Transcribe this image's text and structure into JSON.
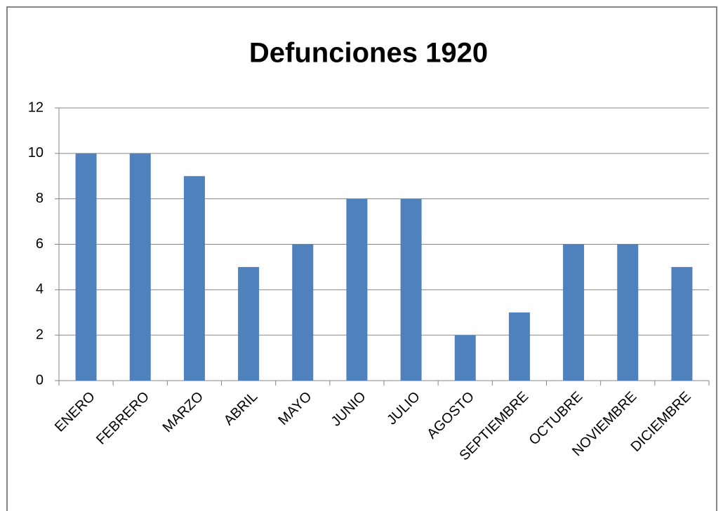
{
  "chart_data": {
    "type": "bar",
    "title": "Defunciones 1920",
    "categories": [
      "ENERO",
      "FEBRERO",
      "MARZO",
      "ABRIL",
      "MAYO",
      "JUNIO",
      "JULIO",
      "AGOSTO",
      "SEPTIEMBRE",
      "OCTUBRE",
      "NOVIEMBRE",
      "DICIEMBRE"
    ],
    "values": [
      10,
      10,
      9,
      5,
      6,
      8,
      8,
      2,
      3,
      6,
      6,
      5
    ],
    "color": "#4f81bd",
    "ylim": [
      0,
      12
    ],
    "yticks": [
      0,
      2,
      4,
      6,
      8,
      10,
      12
    ],
    "grid": true
  }
}
